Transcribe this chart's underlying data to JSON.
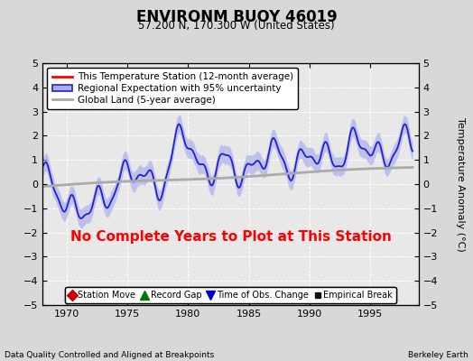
{
  "title": "ENVIRONM BUOY 46019",
  "subtitle": "57.200 N, 170.300 W (United States)",
  "ylabel": "Temperature Anomaly (°C)",
  "xlabel_left": "Data Quality Controlled and Aligned at Breakpoints",
  "xlabel_right": "Berkeley Earth",
  "annotation": "No Complete Years to Plot at This Station",
  "annotation_color": "#ff0000",
  "xlim": [
    1968.0,
    1999.0
  ],
  "ylim": [
    -5,
    5
  ],
  "yticks": [
    -5,
    -4,
    -3,
    -2,
    -1,
    0,
    1,
    2,
    3,
    4,
    5
  ],
  "xticks": [
    1970,
    1975,
    1980,
    1985,
    1990,
    1995
  ],
  "bg_color": "#d8d8d8",
  "plot_bg_color": "#e8e8e8",
  "legend_entries": [
    {
      "label": "This Temperature Station (12-month average)",
      "color": "#ff0000",
      "lw": 2
    },
    {
      "label": "Regional Expectation with 95% uncertainty",
      "color": "#2222cc",
      "band_color": "#aaaaee"
    },
    {
      "label": "Global Land (5-year average)",
      "color": "#aaaaaa",
      "lw": 2
    }
  ],
  "legend_markers": [
    {
      "label": "Station Move",
      "color": "#cc0000",
      "marker": "D",
      "size": 6
    },
    {
      "label": "Record Gap",
      "color": "#007700",
      "marker": "^",
      "size": 7
    },
    {
      "label": "Time of Obs. Change",
      "color": "#0000cc",
      "marker": "v",
      "size": 7
    },
    {
      "label": "Empirical Break",
      "color": "#111111",
      "marker": "s",
      "size": 5
    }
  ]
}
